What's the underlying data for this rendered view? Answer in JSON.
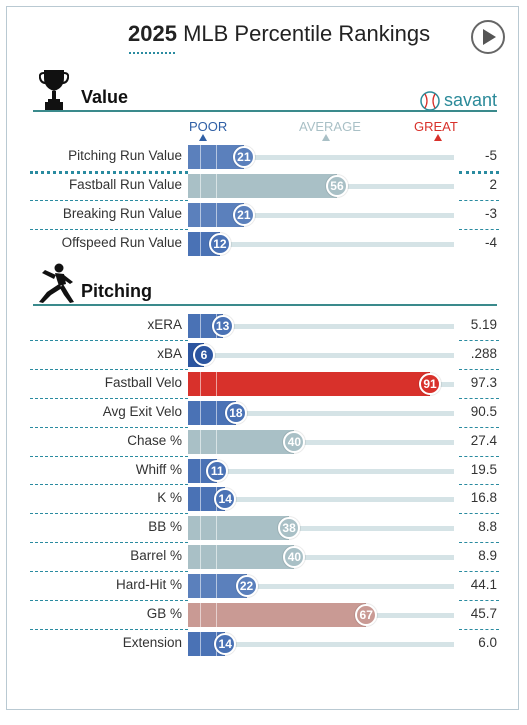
{
  "header": {
    "title_year": "2025",
    "title_rest": "MLB Percentile Rankings"
  },
  "icons": {
    "play": "play-icon",
    "trophy": "trophy-icon",
    "pitcher": "pitcher-icon",
    "savant_ball": "baseball-icon"
  },
  "brand": {
    "savant": "savant",
    "color": "#2b8a99"
  },
  "legend": {
    "poor": "POOR",
    "average": "AVERAGE",
    "great": "GREAT"
  },
  "colors": {
    "poor": "#2f5fa5",
    "average": "#a9c0c6",
    "great": "#d8312b",
    "slightly_above": "#c99a94",
    "track": "#d5e3e6",
    "accent": "#2a8ba0"
  },
  "value_section": {
    "title": "Value",
    "rows": [
      {
        "label": "Pitching Run Value",
        "percentile": 21,
        "value": "-5"
      },
      {
        "label": "Fastball Run Value",
        "percentile": 56,
        "value": "2"
      },
      {
        "label": "Breaking Run Value",
        "percentile": 21,
        "value": "-3"
      },
      {
        "label": "Offspeed Run Value",
        "percentile": 12,
        "value": "-4"
      }
    ]
  },
  "pitching_section": {
    "title": "Pitching",
    "rows": [
      {
        "label": "xERA",
        "percentile": 13,
        "value": "5.19"
      },
      {
        "label": "xBA",
        "percentile": 6,
        "value": ".288"
      },
      {
        "label": "Fastball Velo",
        "percentile": 91,
        "value": "97.3"
      },
      {
        "label": "Avg Exit Velo",
        "percentile": 18,
        "value": "90.5"
      },
      {
        "label": "Chase %",
        "percentile": 40,
        "value": "27.4"
      },
      {
        "label": "Whiff %",
        "percentile": 11,
        "value": "19.5"
      },
      {
        "label": "K %",
        "percentile": 14,
        "value": "16.8"
      },
      {
        "label": "BB %",
        "percentile": 38,
        "value": "8.8"
      },
      {
        "label": "Barrel %",
        "percentile": 40,
        "value": "8.9"
      },
      {
        "label": "Hard-Hit %",
        "percentile": 22,
        "value": "44.1"
      },
      {
        "label": "GB %",
        "percentile": 67,
        "value": "45.7"
      },
      {
        "label": "Extension",
        "percentile": 14,
        "value": "6.0"
      }
    ]
  }
}
